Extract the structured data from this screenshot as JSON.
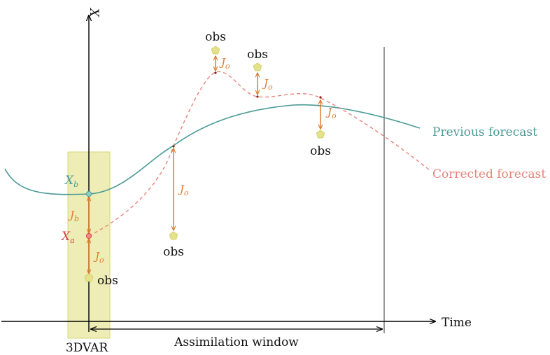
{
  "axes": {
    "y_label": "X",
    "x_label": "Time"
  },
  "window_box_label": "3DVAR",
  "assimilation_window_label": "Assimilation window",
  "series": {
    "previous": {
      "label": "Previous forecast",
      "color": "#4a9a96"
    },
    "corrected": {
      "label": "Corrected forecast",
      "color": "#e8837b"
    }
  },
  "state_labels": {
    "background": {
      "main": "X",
      "sub": "b",
      "color": "#4a9a96"
    },
    "analysis": {
      "main": "X",
      "sub": "a",
      "color": "#d64541"
    }
  },
  "cost_labels": {
    "obs": {
      "main": "J",
      "sub": "o"
    },
    "background": {
      "main": "J",
      "sub": "b"
    },
    "color": "#e07a2c"
  },
  "obs_label": "obs",
  "colors": {
    "box_fill": "#eaeaa8",
    "box_stroke": "#d7d77a",
    "star_fill": "#e6e28c",
    "star_stroke": "#cfcf6a",
    "axis": "#000000"
  }
}
